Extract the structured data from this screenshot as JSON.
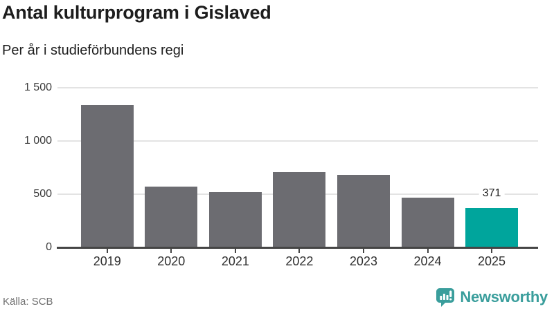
{
  "chart_data": {
    "type": "bar",
    "title": "Antal kulturprogram i Gislaved",
    "subtitle": "Per år i studieförbundens regi",
    "categories": [
      "2019",
      "2020",
      "2021",
      "2022",
      "2023",
      "2024",
      "2025"
    ],
    "values": [
      1340,
      570,
      520,
      705,
      685,
      470,
      371
    ],
    "data_labels": [
      "",
      "",
      "",
      "",
      "",
      "",
      "371"
    ],
    "highlight_index": 6,
    "xlabel": "",
    "ylabel": "",
    "ylim": [
      0,
      1500
    ],
    "yticks": [
      0,
      500,
      1000,
      1500
    ],
    "ytick_labels": [
      "0",
      "500",
      "1 000",
      "1 500"
    ],
    "grid": true,
    "legend_position": "none",
    "colors": {
      "bar": "#6c6c71",
      "highlight": "#00a59c",
      "gridline": "#e3e3e3",
      "axis": "#454545",
      "tick_label": "#3d3d3d"
    }
  },
  "footer": {
    "source": "Källa: SCB",
    "brand": "Newsworthy",
    "brand_color": "#3a9e9c",
    "brand_icon": "speech-bubble-barchart-exclamation"
  }
}
